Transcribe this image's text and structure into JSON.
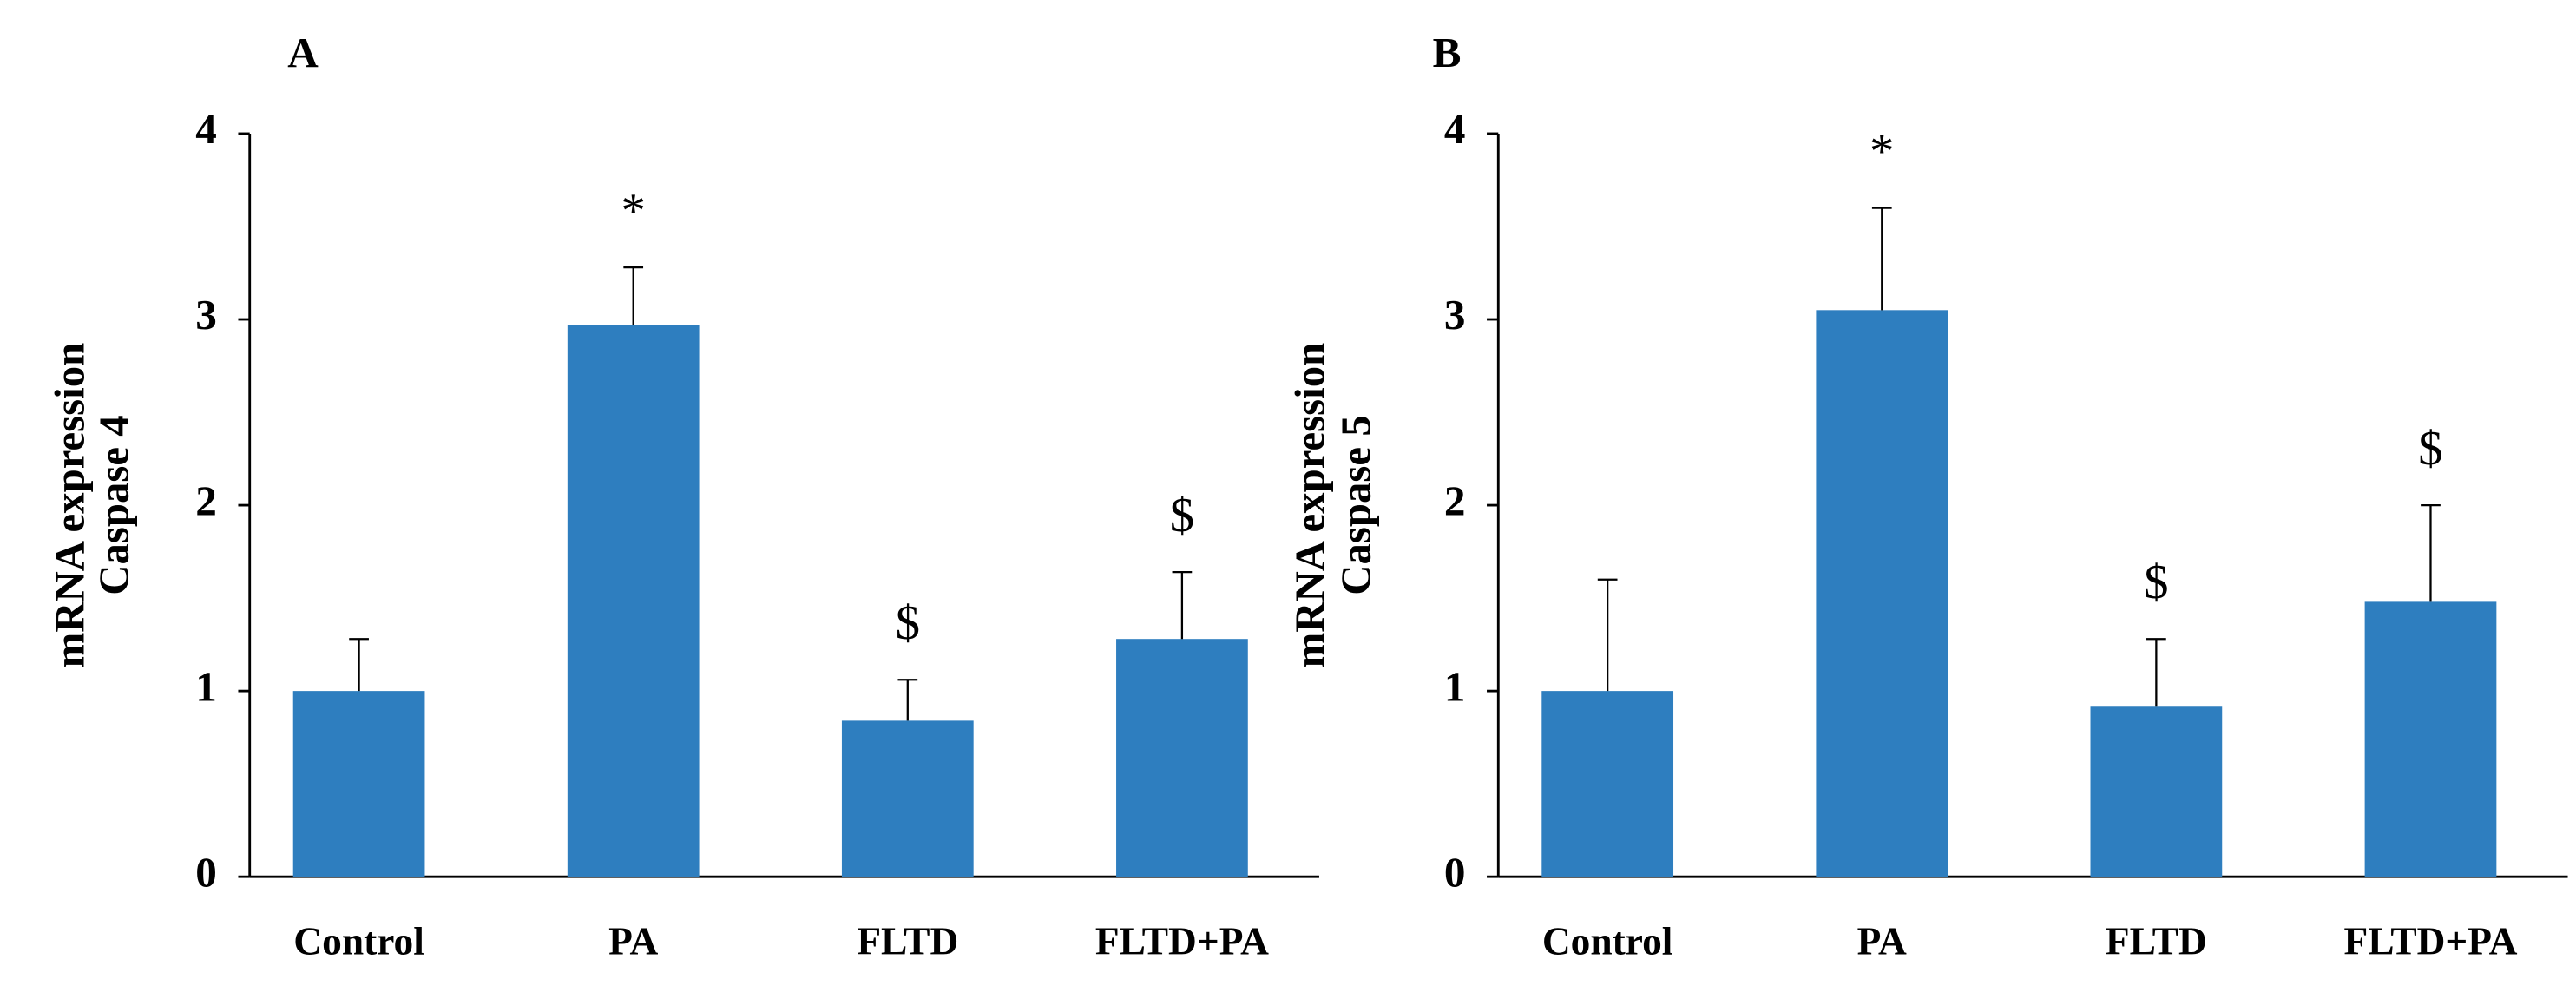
{
  "chart_data": [
    {
      "type": "bar",
      "title": "A",
      "ylabel": [
        "mRNA expression",
        "Caspase 4"
      ],
      "categories": [
        "Control",
        "PA",
        "FLTD",
        "FLTD+PA"
      ],
      "values": [
        1.0,
        2.97,
        0.84,
        1.28
      ],
      "errors": [
        0.28,
        0.31,
        0.22,
        0.36
      ],
      "annotations": [
        null,
        "*",
        "$",
        "$"
      ],
      "color": "#2e7ebf",
      "ylim": [
        0,
        4
      ],
      "yticks": [
        0,
        1,
        2,
        3,
        4
      ],
      "grid": false
    },
    {
      "type": "bar",
      "title": "B",
      "ylabel": [
        "mRNA expression",
        "Caspase 5"
      ],
      "categories": [
        "Control",
        "PA",
        "FLTD",
        "FLTD+PA"
      ],
      "values": [
        1.0,
        3.05,
        0.92,
        1.48
      ],
      "errors": [
        0.6,
        0.55,
        0.36,
        0.52
      ],
      "annotations": [
        null,
        "*",
        "$",
        "$"
      ],
      "color": "#2e7ebf",
      "ylim": [
        0,
        4
      ],
      "yticks": [
        0,
        1,
        2,
        3,
        4
      ],
      "grid": false
    }
  ]
}
